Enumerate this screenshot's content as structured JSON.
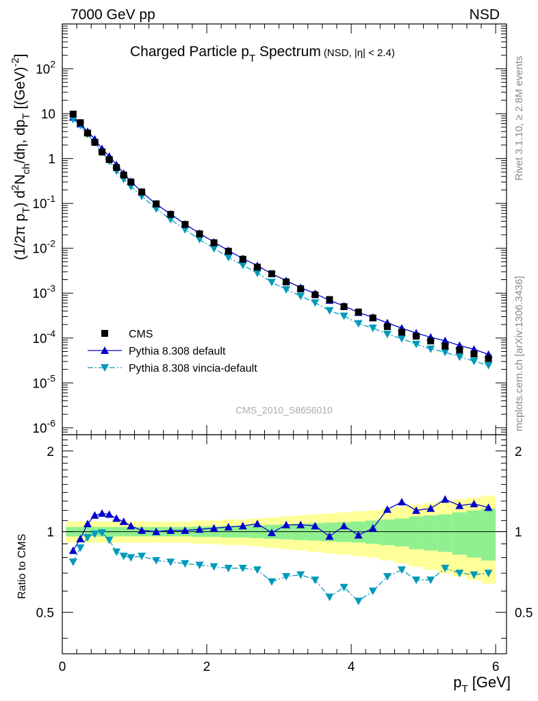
{
  "header": {
    "left": "7000 GeV pp",
    "right": "NSD"
  },
  "side_text": {
    "top": "Rivet 3.1.10, ≥ 2.8M events",
    "bottom": "mcplots.cern.ch [arXiv:1306.3436]"
  },
  "watermark": "CMS_2010_S8656010",
  "chart_data": [
    {
      "type": "scatter",
      "panel": "main",
      "title": "Charged Particle pT Spectrum",
      "title_parts": {
        "base": "Charged Particle p",
        "sub": "T",
        "rest": " Spectrum",
        "qualifier": "(NSD, |η| < 2.4)"
      },
      "ylabel": "(1/2π pT) d²Nch/dη, dpT [(GeV)⁻²]",
      "xlabel": "pT [GeV]",
      "xlim": [
        0,
        6.15
      ],
      "ylim": [
        7e-07,
        1000
      ],
      "yscale": "log",
      "x_ticks": [
        0,
        2,
        4,
        6
      ],
      "y_tick_labels": [
        "10^-6",
        "10^-5",
        "10^-4",
        "10^-3",
        "10^-2",
        "10^-1",
        "1",
        "10",
        "10^2"
      ],
      "legend_position": "lower-left",
      "x": [
        0.15,
        0.25,
        0.35,
        0.45,
        0.55,
        0.65,
        0.75,
        0.85,
        0.95,
        1.1,
        1.3,
        1.5,
        1.7,
        1.9,
        2.1,
        2.3,
        2.5,
        2.7,
        2.9,
        3.1,
        3.3,
        3.5,
        3.7,
        3.9,
        4.1,
        4.3,
        4.5,
        4.7,
        4.9,
        5.1,
        5.3,
        5.5,
        5.7,
        5.9
      ],
      "series": [
        {
          "name": "CMS",
          "color": "#000000",
          "marker": "square",
          "values": [
            9.8,
            6.3,
            3.7,
            2.3,
            1.4,
            0.95,
            0.63,
            0.43,
            0.3,
            0.18,
            0.098,
            0.057,
            0.034,
            0.021,
            0.0133,
            0.0086,
            0.0057,
            0.0038,
            0.0027,
            0.00178,
            0.00125,
            0.00092,
            0.00072,
            0.0005,
            0.00038,
            0.00028,
            0.00018,
            0.000135,
            0.00011,
            8.6e-05,
            6.6e-05,
            5.4e-05,
            4.4e-05,
            3.5e-05
          ]
        },
        {
          "name": "Pythia 8.308 default",
          "color": "#0000cc",
          "marker": "triangle-up",
          "line": "solid",
          "values": [
            8.3,
            5.9,
            4.0,
            2.7,
            1.65,
            1.12,
            0.73,
            0.47,
            0.31,
            0.18,
            0.096,
            0.058,
            0.0345,
            0.0215,
            0.0137,
            0.0089,
            0.0059,
            0.0041,
            0.0027,
            0.0019,
            0.00133,
            0.00098,
            0.00069,
            0.00052,
            0.00037,
            0.00029,
            0.000218,
            0.000166,
            0.000129,
            0.000104,
            8.7e-05,
            6.8e-05,
            5.6e-05,
            4.3e-05
          ]
        },
        {
          "name": "Pythia 8.308 vincia-default",
          "color": "#0099bb",
          "marker": "triangle-down",
          "line": "dashdot",
          "values": [
            7.5,
            5.5,
            3.5,
            2.25,
            1.38,
            0.88,
            0.53,
            0.35,
            0.24,
            0.145,
            0.076,
            0.044,
            0.026,
            0.0158,
            0.0099,
            0.0063,
            0.0042,
            0.0028,
            0.00175,
            0.0012,
            0.00086,
            0.00061,
            0.00041,
            0.00031,
            0.00021,
            0.000167,
            0.000122,
            9.7e-05,
            7.3e-05,
            5.7e-05,
            4.85e-05,
            3.8e-05,
            3.05e-05,
            2.45e-05
          ]
        }
      ]
    },
    {
      "type": "line",
      "panel": "ratio",
      "ylabel": "Ratio to CMS",
      "xlim": [
        0,
        6.15
      ],
      "ylim": [
        0.35,
        2.3
      ],
      "yscale": "log",
      "y_tick_labels": [
        "0.5",
        "1",
        "2"
      ],
      "reference": 1,
      "x": [
        0.15,
        0.25,
        0.35,
        0.45,
        0.55,
        0.65,
        0.75,
        0.85,
        0.95,
        1.1,
        1.3,
        1.5,
        1.7,
        1.9,
        2.1,
        2.3,
        2.5,
        2.7,
        2.9,
        3.1,
        3.3,
        3.5,
        3.7,
        3.9,
        4.1,
        4.3,
        4.5,
        4.7,
        4.9,
        5.1,
        5.3,
        5.5,
        5.7,
        5.9
      ],
      "band_inner": [
        0.04,
        0.04,
        0.04,
        0.04,
        0.04,
        0.04,
        0.04,
        0.04,
        0.04,
        0.04,
        0.04,
        0.04,
        0.04,
        0.045,
        0.045,
        0.05,
        0.05,
        0.055,
        0.06,
        0.065,
        0.07,
        0.075,
        0.08,
        0.085,
        0.09,
        0.1,
        0.11,
        0.12,
        0.14,
        0.15,
        0.16,
        0.18,
        0.2,
        0.22
      ],
      "band_outer": [
        0.09,
        0.09,
        0.09,
        0.09,
        0.09,
        0.09,
        0.09,
        0.09,
        0.09,
        0.09,
        0.09,
        0.09,
        0.09,
        0.1,
        0.1,
        0.11,
        0.11,
        0.12,
        0.13,
        0.14,
        0.15,
        0.16,
        0.17,
        0.18,
        0.19,
        0.2,
        0.22,
        0.24,
        0.26,
        0.28,
        0.3,
        0.32,
        0.34,
        0.36
      ],
      "band_colors": {
        "inner": "#90f090",
        "outer": "#ffff99"
      },
      "series": [
        {
          "name": "Pythia 8.308 default",
          "color": "#0000cc",
          "marker": "triangle-up",
          "line": "solid",
          "values": [
            0.85,
            0.94,
            1.07,
            1.15,
            1.17,
            1.16,
            1.12,
            1.09,
            1.05,
            1.01,
            1.0,
            1.01,
            1.01,
            1.02,
            1.03,
            1.04,
            1.05,
            1.07,
            0.99,
            1.06,
            1.06,
            1.05,
            0.96,
            1.05,
            0.97,
            1.03,
            1.21,
            1.29,
            1.2,
            1.22,
            1.32,
            1.25,
            1.27,
            1.23
          ]
        },
        {
          "name": "Pythia 8.308 vincia-default",
          "color": "#0099bb",
          "marker": "triangle-down",
          "line": "dashdot",
          "values": [
            0.77,
            0.87,
            0.95,
            0.98,
            0.99,
            0.93,
            0.84,
            0.81,
            0.8,
            0.81,
            0.78,
            0.77,
            0.76,
            0.75,
            0.74,
            0.73,
            0.73,
            0.72,
            0.65,
            0.68,
            0.69,
            0.66,
            0.57,
            0.62,
            0.55,
            0.6,
            0.68,
            0.72,
            0.66,
            0.66,
            0.73,
            0.7,
            0.69,
            0.7
          ]
        }
      ]
    }
  ]
}
